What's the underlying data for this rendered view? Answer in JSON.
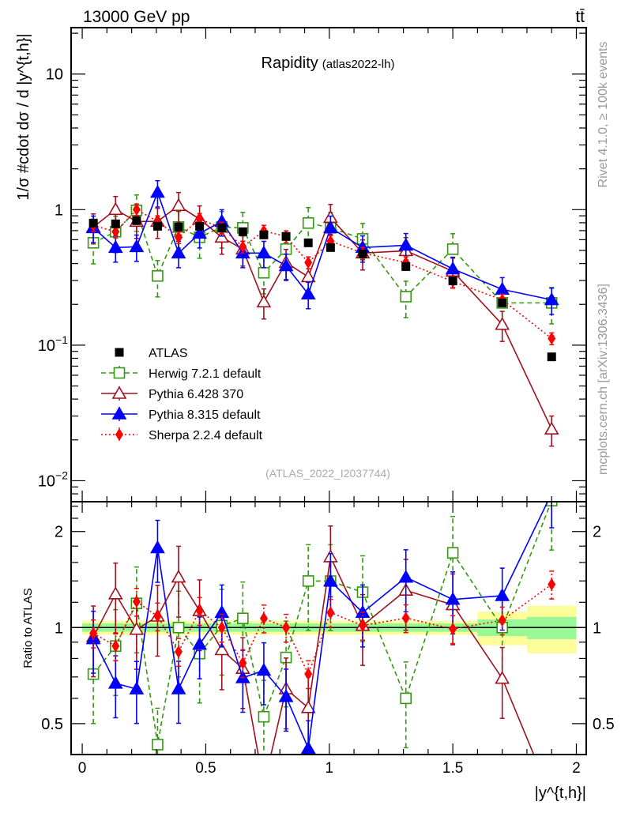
{
  "header": {
    "energy": "13000 GeV pp",
    "process": "tt̄"
  },
  "side": {
    "rivet": "Rivet 4.1.0, ≥ 100k events",
    "mcplots": "mcplots.cern.ch [arXiv:1306.3436]"
  },
  "chart_data": [
    {
      "type": "line",
      "title": "Rapidity",
      "subtitle": "(atlas2022-lh)",
      "watermark": "(ATLAS_2022_I2037744)",
      "ylabel": "1/σ #cdot dσ / d |y^{t,h}|",
      "yscale": "log",
      "ylim": [
        0.007,
        22
      ],
      "xlim": [
        -0.045,
        2.04
      ],
      "ytick_labels": [
        {
          "value": 10,
          "base": "10",
          "exp": ""
        },
        {
          "value": 1,
          "base": "1",
          "exp": ""
        },
        {
          "value": 0.1,
          "base": "10",
          "exp": "−1"
        },
        {
          "value": 0.01,
          "base": "10",
          "exp": "−2"
        }
      ],
      "legend_placement": "lower-left",
      "x": [
        0.045,
        0.135,
        0.22,
        0.305,
        0.39,
        0.475,
        0.565,
        0.65,
        0.735,
        0.825,
        0.915,
        1.005,
        1.135,
        1.31,
        1.5,
        1.7,
        1.9
      ],
      "series": [
        {
          "name": "ATLAS",
          "color": "#000000",
          "marker": "square-filled",
          "line": "none",
          "rel_err": 0.03,
          "values": [
            0.796,
            0.785,
            0.829,
            0.754,
            0.744,
            0.754,
            0.734,
            0.687,
            0.651,
            0.634,
            0.569,
            0.525,
            0.471,
            0.38,
            0.298,
            0.205,
            0.082
          ]
        },
        {
          "name": "Herwig 7.2.1 default",
          "color": "#339910",
          "marker": "square-open",
          "line": "dashed",
          "rel_err": 0.3,
          "values": [
            0.569,
            0.687,
            0.987,
            0.324,
            0.744,
            0.625,
            0.744,
            0.734,
            0.342,
            0.511,
            0.796,
            0.734,
            0.608,
            0.228,
            0.511,
            0.205,
            0.205
          ]
        },
        {
          "name": "Pythia 6.428 370",
          "color": "#a0101e",
          "marker": "triangle-open",
          "line": "solid",
          "rel_err": 0.25,
          "values": [
            0.744,
            1.0,
            0.818,
            0.818,
            1.07,
            0.851,
            0.625,
            0.511,
            0.208,
            0.407,
            0.319,
            0.874,
            0.478,
            0.497,
            0.351,
            0.142,
            0.024
          ]
        },
        {
          "name": "Pythia 8.315 default",
          "color": "#0000ff",
          "marker": "triangle-filled",
          "line": "solid",
          "rel_err": 0.22,
          "values": [
            0.734,
            0.525,
            0.532,
            1.34,
            0.478,
            0.668,
            0.818,
            0.478,
            0.478,
            0.385,
            0.238,
            0.734,
            0.525,
            0.546,
            0.365,
            0.258,
            0.216
          ]
        },
        {
          "name": "Sherpa 2.2.4 default",
          "color": "#ff0000",
          "marker": "diamond-filled",
          "line": "dotted",
          "rel_err": 0.1,
          "values": [
            0.764,
            0.687,
            1.0,
            0.818,
            0.625,
            0.851,
            0.734,
            0.532,
            0.696,
            0.634,
            0.407,
            0.585,
            0.478,
            0.407,
            0.295,
            0.216,
            0.112
          ]
        }
      ]
    },
    {
      "type": "line",
      "ylabel": "Ratio to ATLAS",
      "xlabel": "|y^{t,h}|",
      "yscale": "log",
      "ylim": [
        0.4,
        2.48
      ],
      "xlim": [
        -0.045,
        2.04
      ],
      "xtick_labels": [
        "0",
        "0.5",
        "1",
        "1.5",
        "2"
      ],
      "xticks": [
        0,
        0.5,
        1,
        1.5,
        2
      ],
      "ytick_labels": [
        "2",
        "1",
        "0.5"
      ],
      "yticks": [
        2,
        1,
        0.5
      ],
      "band_edges": [
        0,
        0.09,
        0.18,
        0.26,
        0.35,
        0.43,
        0.52,
        0.61,
        0.69,
        0.78,
        0.87,
        0.96,
        1.05,
        1.22,
        1.4,
        1.6,
        1.8,
        2.0
      ],
      "band_green": [
        0.03,
        0.03,
        0.03,
        0.03,
        0.03,
        0.03,
        0.03,
        0.03,
        0.03,
        0.03,
        0.03,
        0.03,
        0.03,
        0.03,
        0.03,
        0.06,
        0.08
      ],
      "band_yellow": [
        0.05,
        0.05,
        0.05,
        0.05,
        0.05,
        0.05,
        0.05,
        0.05,
        0.05,
        0.05,
        0.05,
        0.05,
        0.05,
        0.05,
        0.05,
        0.12,
        0.17
      ],
      "band_colors": {
        "green": "#98f898",
        "yellow": "#fdfd9a"
      }
    }
  ]
}
